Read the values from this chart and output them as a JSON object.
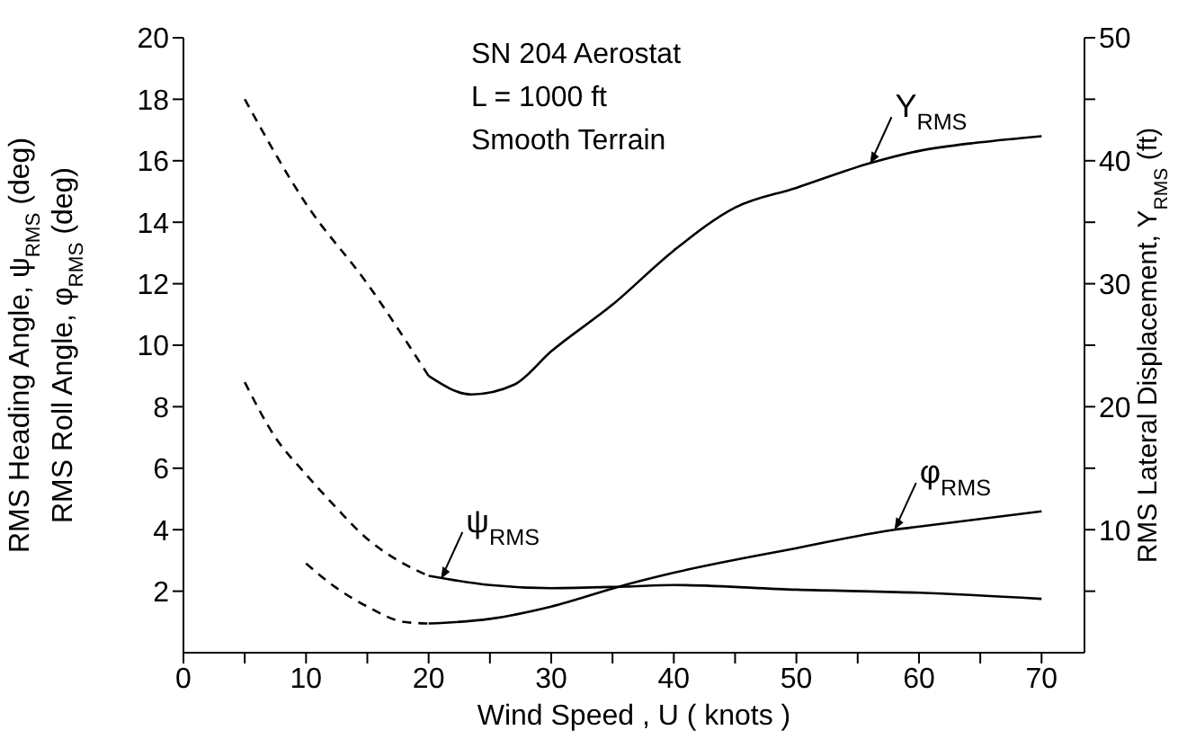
{
  "chart_data": {
    "type": "line",
    "xlabel": "Wind Speed , U ( knots )",
    "ylabel": "RMS Heading Angle, ψ$_{RMS}$ (deg)\nRMS Roll Angle, φ$_{RMS}$ (deg)",
    "y2label": "RMS Lateral Displacement, Y$_{RMS}$ (ft)",
    "xlim": [
      0,
      73.5
    ],
    "xticks": [
      0,
      {
        "value": 5,
        "label": null
      },
      10,
      {
        "value": 15,
        "label": null
      },
      20,
      {
        "value": 25,
        "label": null
      },
      30,
      {
        "value": 35,
        "label": null
      },
      40,
      {
        "value": 45,
        "label": null
      },
      50,
      {
        "value": 55,
        "label": null
      },
      60,
      {
        "value": 65,
        "label": null
      },
      70
    ],
    "ylim": [
      0,
      20
    ],
    "yticks": [
      2,
      4,
      6,
      8,
      10,
      12,
      14,
      16,
      18,
      20
    ],
    "y2lim": [
      0,
      50
    ],
    "y2ticks": [
      {
        "value": 5,
        "label": null
      },
      10,
      {
        "value": 15,
        "label": null
      },
      20,
      {
        "value": 25,
        "label": null
      },
      30,
      {
        "value": 35,
        "label": null
      },
      40,
      {
        "value": 45,
        "label": null
      },
      50
    ],
    "marker": "none",
    "series": [
      {
        "color": "#000000",
        "axis": "y2",
        "line_style": "dashed",
        "x": [
          5,
          10,
          15,
          20
        ],
        "values": [
          45,
          36.5,
          30,
          22.5
        ]
      },
      {
        "color": "#000000",
        "axis": "y2",
        "line_style": "solid",
        "x": [
          20,
          23.5,
          27,
          30,
          35,
          40,
          45,
          50,
          56,
          60,
          65,
          70
        ],
        "values": [
          22.5,
          21,
          21.8,
          24.5,
          28.3,
          32.7,
          36.2,
          37.8,
          39.8,
          40.8,
          41.5,
          42
        ]
      },
      {
        "color": "#000000",
        "line_style": "dashed",
        "x": [
          5,
          7.5,
          10,
          12.5,
          15,
          17.5,
          20
        ],
        "values": [
          8.8,
          7,
          5.8,
          4.7,
          3.7,
          3,
          2.5
        ]
      },
      {
        "color": "#000000",
        "line_style": "solid",
        "x": [
          20,
          25,
          30,
          36,
          40,
          50,
          60,
          70
        ],
        "values": [
          2.5,
          2.2,
          2.1,
          2.15,
          2.2,
          2.05,
          1.95,
          1.75
        ]
      },
      {
        "color": "#000000",
        "line_style": "dashed",
        "x": [
          10,
          12.5,
          15,
          18,
          20
        ],
        "values": [
          2.9,
          2.1,
          1.5,
          1,
          0.95
        ]
      },
      {
        "color": "#000000",
        "line_style": "solid",
        "x": [
          20,
          25,
          30,
          36,
          40,
          50,
          58,
          60,
          70
        ],
        "values": [
          0.95,
          1.1,
          1.5,
          2.2,
          2.6,
          3.4,
          4,
          4.1,
          4.6
        ]
      }
    ],
    "annotations": [
      "SN 204 Aerostat",
      "L = 1000 ft",
      "Smooth Terrain",
      {
        "text": "Y$_{RMS}$",
        "x": 56,
        "y": 15.9
      },
      {
        "text": "φ$_{RMS}$",
        "x": 58,
        "y": 4
      },
      {
        "text": "ψ$_{RMS}$",
        "x": 21,
        "y": 2.4
      }
    ]
  }
}
